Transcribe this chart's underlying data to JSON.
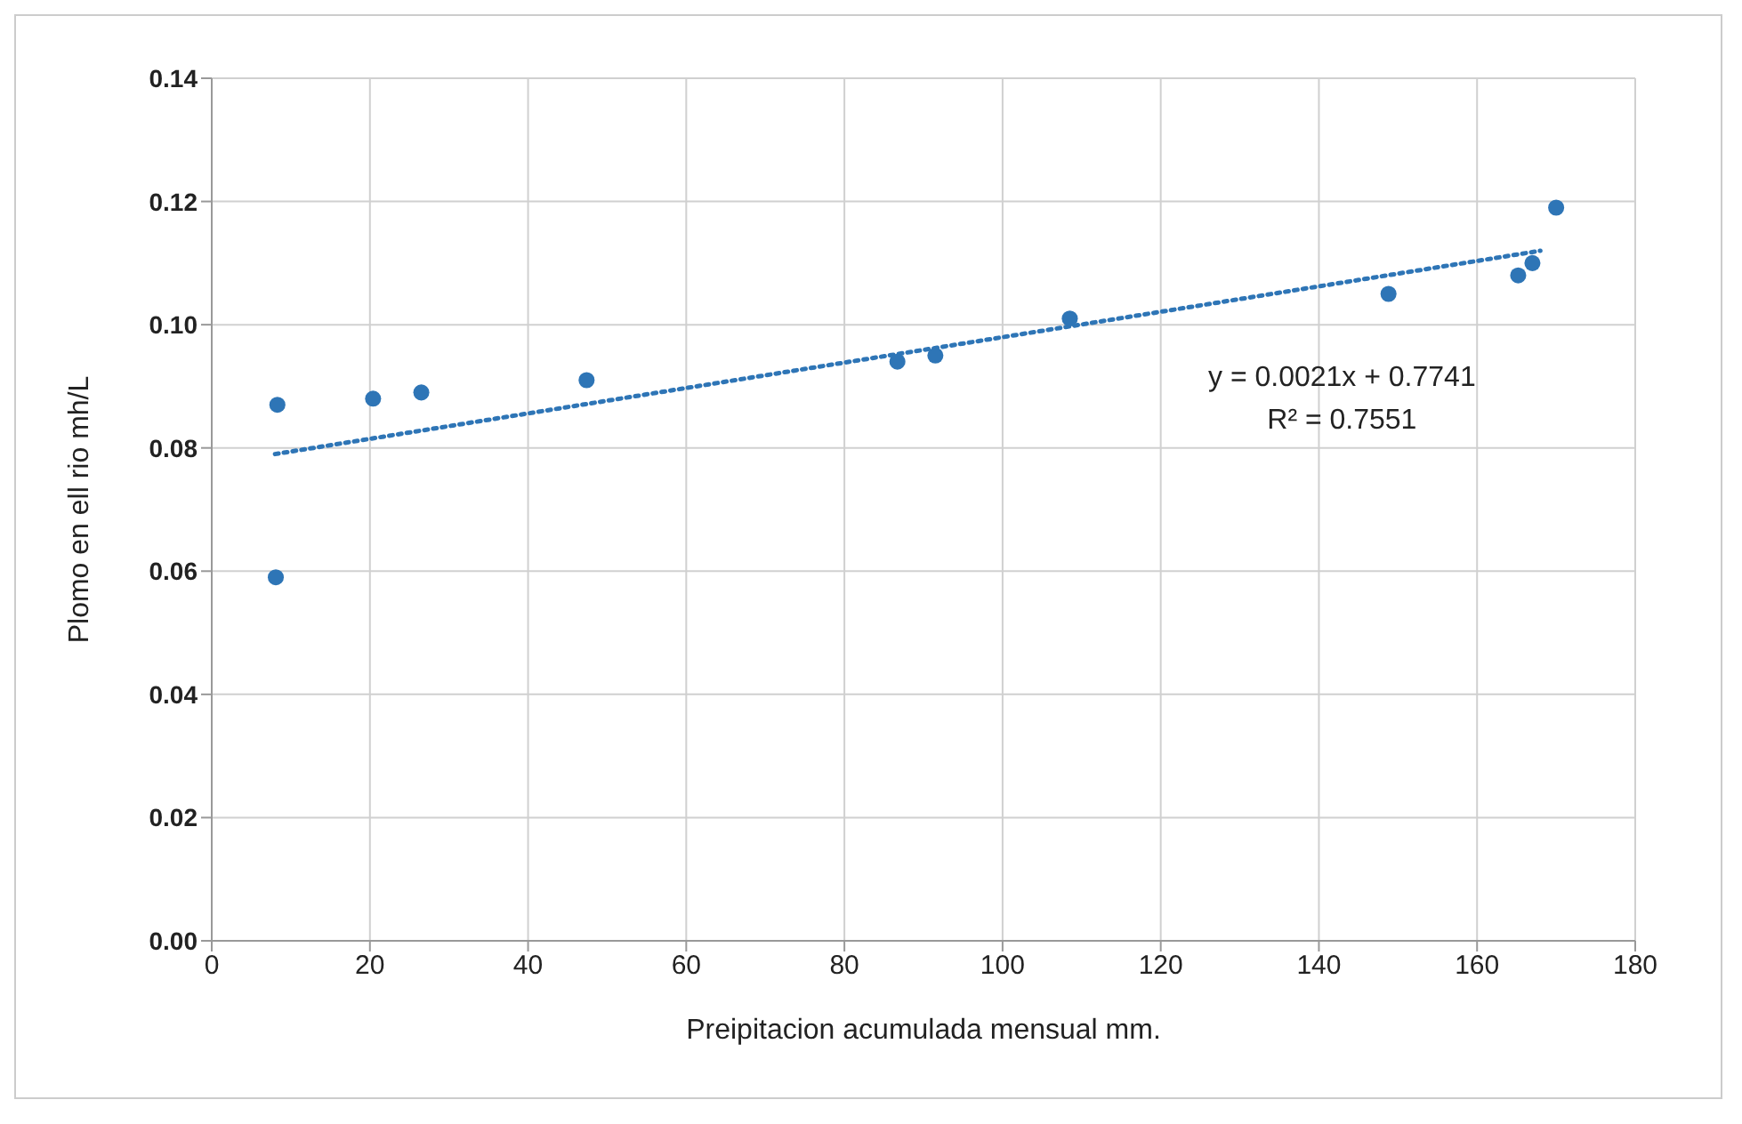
{
  "chart_data": {
    "type": "scatter",
    "xlabel": "Preipitacion acumulada mensual mm.",
    "ylabel": "Plomo en ell rio mh/L",
    "series": [
      {
        "color": "#2e75b6",
        "x": [
          8.1,
          8.3,
          20.4,
          26.5,
          47.4,
          86.7,
          91.5,
          108.5,
          148.8,
          165.2,
          167,
          170
        ],
        "values": [
          0.059,
          0.087,
          0.088,
          0.089,
          0.091,
          0.094,
          0.095,
          0.101,
          0.105,
          0.108,
          0.11,
          0.119
        ],
        "marker": "circle"
      },
      {
        "type": "line",
        "color": "#2e75b6",
        "x": [
          8,
          168
        ],
        "values": [
          0.079,
          0.112
        ],
        "line_style": "dotted",
        "marker": "none"
      }
    ],
    "annotations": [
      "y = 0.0021x + 0.7741",
      "R² = 0.7551"
    ],
    "xlim": [
      0,
      180
    ],
    "xticks": [
      0,
      20,
      40,
      60,
      80,
      100,
      120,
      140,
      160,
      180
    ],
    "ylim": [
      0,
      0.14
    ],
    "yticks": [
      {
        "value": 0,
        "label": "0.00"
      },
      {
        "value": 0.02,
        "label": "0.02"
      },
      {
        "value": 0.04,
        "label": "0.04"
      },
      {
        "value": 0.06,
        "label": "0.06"
      },
      {
        "value": 0.08,
        "label": "0.08"
      },
      {
        "value": 0.1,
        "label": "0.10"
      },
      {
        "value": 0.12,
        "label": "0.12"
      },
      {
        "value": 0.14,
        "label": "0.14"
      }
    ],
    "grid": true,
    "legend": false
  }
}
